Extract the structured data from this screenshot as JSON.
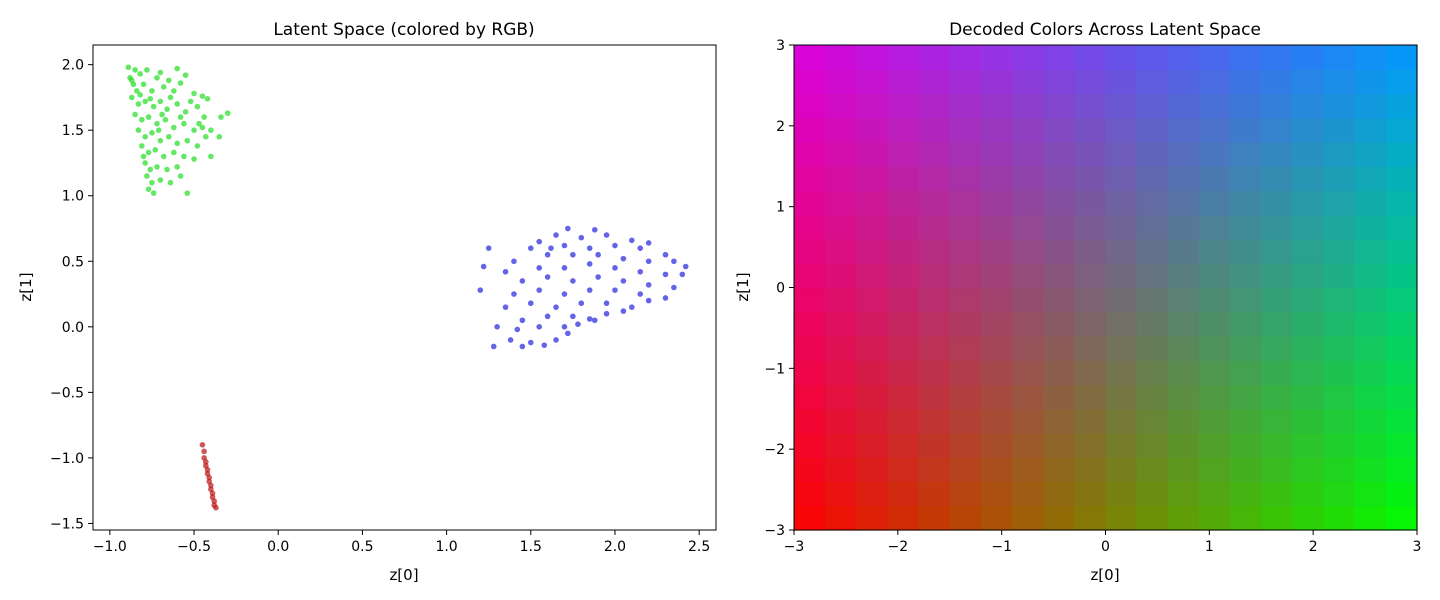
{
  "chart_data": [
    {
      "type": "scatter",
      "title": "Latent Space (colored by RGB)",
      "xlabel": "z[0]",
      "ylabel": "z[1]",
      "xlim": [
        -1.1,
        2.6
      ],
      "ylim": [
        -1.55,
        2.15
      ],
      "xticks": [
        -1.0,
        -0.5,
        0.0,
        0.5,
        1.0,
        1.5,
        2.0,
        2.5
      ],
      "xtick_labels": [
        "−1.0",
        "−0.5",
        "0.0",
        "0.5",
        "1.0",
        "1.5",
        "2.0",
        "2.5"
      ],
      "yticks": [
        -1.5,
        -1.0,
        -0.5,
        0.0,
        0.5,
        1.0,
        1.5,
        2.0
      ],
      "ytick_labels": [
        "−1.5",
        "−1.0",
        "−0.5",
        "0.0",
        "0.5",
        "1.0",
        "1.5",
        "2.0"
      ],
      "grid": false,
      "series": [
        {
          "color": "#22dd22",
          "points": [
            [
              -0.89,
              1.98
            ],
            [
              -0.85,
              1.96
            ],
            [
              -0.82,
              1.93
            ],
            [
              -0.78,
              1.96
            ],
            [
              -0.7,
              1.94
            ],
            [
              -0.6,
              1.97
            ],
            [
              -0.72,
              1.9
            ],
            [
              -0.65,
              1.88
            ],
            [
              -0.55,
              1.92
            ],
            [
              -0.88,
              1.9
            ],
            [
              -0.86,
              1.85
            ],
            [
              -0.84,
              1.8
            ],
            [
              -0.8,
              1.85
            ],
            [
              -0.75,
              1.8
            ],
            [
              -0.68,
              1.83
            ],
            [
              -0.62,
              1.8
            ],
            [
              -0.58,
              1.86
            ],
            [
              -0.5,
              1.78
            ],
            [
              -0.45,
              1.76
            ],
            [
              -0.42,
              1.74
            ],
            [
              -0.87,
              1.75
            ],
            [
              -0.83,
              1.7
            ],
            [
              -0.79,
              1.72
            ],
            [
              -0.74,
              1.68
            ],
            [
              -0.7,
              1.72
            ],
            [
              -0.66,
              1.66
            ],
            [
              -0.6,
              1.7
            ],
            [
              -0.55,
              1.64
            ],
            [
              -0.48,
              1.68
            ],
            [
              -0.44,
              1.6
            ],
            [
              -0.85,
              1.62
            ],
            [
              -0.81,
              1.58
            ],
            [
              -0.77,
              1.6
            ],
            [
              -0.72,
              1.55
            ],
            [
              -0.67,
              1.58
            ],
            [
              -0.62,
              1.52
            ],
            [
              -0.56,
              1.55
            ],
            [
              -0.5,
              1.5
            ],
            [
              -0.45,
              1.52
            ],
            [
              -0.4,
              1.5
            ],
            [
              -0.34,
              1.6
            ],
            [
              -0.3,
              1.63
            ],
            [
              -0.83,
              1.5
            ],
            [
              -0.79,
              1.45
            ],
            [
              -0.75,
              1.48
            ],
            [
              -0.7,
              1.42
            ],
            [
              -0.65,
              1.45
            ],
            [
              -0.6,
              1.4
            ],
            [
              -0.54,
              1.42
            ],
            [
              -0.48,
              1.38
            ],
            [
              -0.43,
              1.45
            ],
            [
              -0.35,
              1.45
            ],
            [
              -0.81,
              1.38
            ],
            [
              -0.77,
              1.33
            ],
            [
              -0.73,
              1.35
            ],
            [
              -0.68,
              1.3
            ],
            [
              -0.62,
              1.33
            ],
            [
              -0.56,
              1.3
            ],
            [
              -0.5,
              1.28
            ],
            [
              -0.4,
              1.3
            ],
            [
              -0.79,
              1.25
            ],
            [
              -0.76,
              1.2
            ],
            [
              -0.72,
              1.22
            ],
            [
              -0.66,
              1.2
            ],
            [
              -0.6,
              1.22
            ],
            [
              -0.78,
              1.15
            ],
            [
              -0.75,
              1.1
            ],
            [
              -0.7,
              1.12
            ],
            [
              -0.64,
              1.1
            ],
            [
              -0.77,
              1.05
            ],
            [
              -0.74,
              1.02
            ],
            [
              -0.54,
              1.02
            ],
            [
              -0.58,
              1.15
            ],
            [
              -0.87,
              1.88
            ],
            [
              -0.82,
              1.77
            ],
            [
              -0.76,
              1.74
            ],
            [
              -0.64,
              1.75
            ],
            [
              -0.52,
              1.72
            ],
            [
              -0.47,
              1.55
            ],
            [
              -0.69,
              1.62
            ],
            [
              -0.58,
              1.6
            ],
            [
              -0.8,
              1.3
            ],
            [
              -0.71,
              1.5
            ]
          ]
        },
        {
          "color": "#2222dd",
          "points": [
            [
              1.72,
              0.75
            ],
            [
              1.88,
              0.74
            ],
            [
              1.65,
              0.7
            ],
            [
              1.8,
              0.68
            ],
            [
              1.95,
              0.7
            ],
            [
              2.1,
              0.66
            ],
            [
              2.2,
              0.64
            ],
            [
              1.55,
              0.65
            ],
            [
              1.25,
              0.6
            ],
            [
              1.5,
              0.6
            ],
            [
              1.7,
              0.62
            ],
            [
              1.85,
              0.6
            ],
            [
              2.0,
              0.62
            ],
            [
              2.15,
              0.6
            ],
            [
              2.3,
              0.55
            ],
            [
              1.4,
              0.5
            ],
            [
              1.6,
              0.55
            ],
            [
              1.75,
              0.55
            ],
            [
              1.9,
              0.55
            ],
            [
              2.05,
              0.52
            ],
            [
              2.2,
              0.5
            ],
            [
              2.35,
              0.5
            ],
            [
              2.42,
              0.46
            ],
            [
              1.22,
              0.46
            ],
            [
              1.35,
              0.42
            ],
            [
              1.55,
              0.45
            ],
            [
              1.7,
              0.45
            ],
            [
              1.85,
              0.48
            ],
            [
              2.0,
              0.45
            ],
            [
              2.15,
              0.42
            ],
            [
              2.3,
              0.4
            ],
            [
              2.4,
              0.4
            ],
            [
              1.45,
              0.35
            ],
            [
              1.6,
              0.38
            ],
            [
              1.75,
              0.35
            ],
            [
              1.9,
              0.38
            ],
            [
              2.05,
              0.35
            ],
            [
              2.2,
              0.32
            ],
            [
              2.35,
              0.3
            ],
            [
              1.2,
              0.28
            ],
            [
              1.4,
              0.25
            ],
            [
              1.55,
              0.28
            ],
            [
              1.7,
              0.25
            ],
            [
              1.85,
              0.28
            ],
            [
              2.0,
              0.28
            ],
            [
              2.15,
              0.25
            ],
            [
              2.3,
              0.22
            ],
            [
              1.35,
              0.15
            ],
            [
              1.5,
              0.18
            ],
            [
              1.65,
              0.15
            ],
            [
              1.8,
              0.18
            ],
            [
              1.95,
              0.18
            ],
            [
              2.1,
              0.15
            ],
            [
              2.2,
              0.2
            ],
            [
              1.45,
              0.05
            ],
            [
              1.6,
              0.08
            ],
            [
              1.75,
              0.08
            ],
            [
              1.85,
              0.06
            ],
            [
              1.95,
              0.1
            ],
            [
              2.05,
              0.12
            ],
            [
              1.3,
              0.0
            ],
            [
              1.42,
              -0.02
            ],
            [
              1.55,
              0.0
            ],
            [
              1.7,
              0.0
            ],
            [
              1.78,
              0.02
            ],
            [
              1.88,
              0.05
            ],
            [
              1.38,
              -0.1
            ],
            [
              1.5,
              -0.12
            ],
            [
              1.65,
              -0.1
            ],
            [
              1.28,
              -0.15
            ],
            [
              1.45,
              -0.15
            ],
            [
              1.58,
              -0.14
            ],
            [
              1.72,
              -0.05
            ],
            [
              1.62,
              0.6
            ]
          ]
        },
        {
          "color": "#bb1111",
          "points": [
            [
              -0.45,
              -0.9
            ],
            [
              -0.44,
              -0.95
            ],
            [
              -0.44,
              -1.0
            ],
            [
              -0.43,
              -1.03
            ],
            [
              -0.43,
              -1.06
            ],
            [
              -0.42,
              -1.09
            ],
            [
              -0.42,
              -1.12
            ],
            [
              -0.41,
              -1.15
            ],
            [
              -0.41,
              -1.18
            ],
            [
              -0.4,
              -1.21
            ],
            [
              -0.4,
              -1.24
            ],
            [
              -0.39,
              -1.27
            ],
            [
              -0.39,
              -1.3
            ],
            [
              -0.38,
              -1.33
            ],
            [
              -0.38,
              -1.36
            ],
            [
              -0.37,
              -1.38
            ]
          ]
        }
      ]
    },
    {
      "type": "heatmap",
      "title": "Decoded Colors Across Latent Space",
      "xlabel": "z[0]",
      "ylabel": "z[1]",
      "xlim": [
        -3,
        3
      ],
      "ylim": [
        -3,
        3
      ],
      "xticks": [
        -3,
        -2,
        -1,
        0,
        1,
        2,
        3
      ],
      "xtick_labels": [
        "−3",
        "−2",
        "−1",
        "0",
        "1",
        "2",
        "3"
      ],
      "yticks": [
        -3,
        -2,
        -1,
        0,
        1,
        2,
        3
      ],
      "ytick_labels": [
        "−3",
        "−2",
        "−1",
        "0",
        "1",
        "2",
        "3"
      ],
      "grid_size": 20,
      "corner_colors": {
        "bottom_left": "#ff0000",
        "bottom_right": "#00ff00",
        "top_left": "#dd00dd",
        "top_right": "#0099ff"
      }
    }
  ]
}
